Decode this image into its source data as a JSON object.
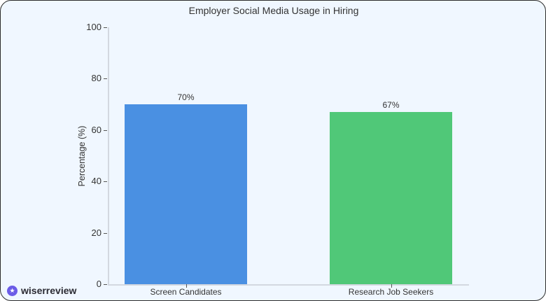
{
  "chart_data": {
    "type": "bar",
    "title": "Employer Social Media Usage in Hiring",
    "xlabel": "",
    "ylabel": "Percentage (%)",
    "categories": [
      "Screen Candidates",
      "Research Job Seekers"
    ],
    "values": [
      70,
      67
    ],
    "data_labels": [
      "70%",
      "67%"
    ],
    "colors": [
      "#4a90e2",
      "#50c878"
    ],
    "ylim": [
      0,
      100
    ],
    "yticks": [
      0,
      20,
      40,
      60,
      80,
      100
    ],
    "grid": false,
    "legend": null
  },
  "chart": {
    "title": "Employer Social Media Usage in Hiring",
    "ylabel": "Percentage (%)",
    "yticks": [
      "0",
      "20",
      "40",
      "60",
      "80",
      "100"
    ],
    "bars": [
      {
        "category": "Screen Candidates",
        "value_label": "70%"
      },
      {
        "category": "Research Job Seekers",
        "value_label": "67%"
      }
    ]
  },
  "brand": {
    "icon": "star-badge-icon",
    "name": "wiserreview"
  }
}
